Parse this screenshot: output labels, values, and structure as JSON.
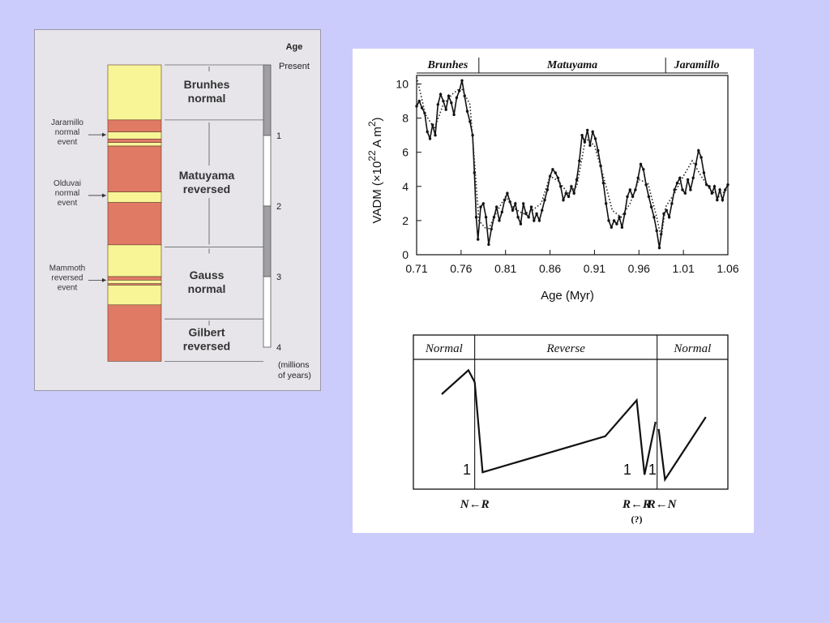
{
  "timescale": {
    "age_header": "Age",
    "present_label": "Present",
    "units_line1": "(millions",
    "units_line2": "of years)",
    "ticks": [
      "1",
      "2",
      "3",
      "4"
    ],
    "chrons": [
      {
        "line1": "Brunhes",
        "line2": "normal",
        "start_ma": 0.0,
        "end_ma": 0.78
      },
      {
        "line1": "Matuyama",
        "line2": "reversed",
        "start_ma": 0.78,
        "end_ma": 2.58
      },
      {
        "line1": "Gauss",
        "line2": "normal",
        "start_ma": 2.58,
        "end_ma": 3.6
      },
      {
        "line1": "Gilbert",
        "line2": "reversed",
        "start_ma": 3.6,
        "end_ma": 4.2
      }
    ],
    "events": [
      {
        "lines": [
          "Jaramillo",
          "normal",
          "event"
        ],
        "age_ma": 0.99
      },
      {
        "lines": [
          "Olduvai",
          "normal",
          "event"
        ],
        "age_ma": 1.85
      },
      {
        "lines": [
          "Mammoth",
          "reversed",
          "event"
        ],
        "age_ma": 3.05
      }
    ],
    "polarity_bands": [
      {
        "polarity": "normal",
        "from": 0.0,
        "to": 0.78
      },
      {
        "polarity": "reversed",
        "from": 0.78,
        "to": 0.95
      },
      {
        "polarity": "normal",
        "from": 0.95,
        "to": 1.05
      },
      {
        "polarity": "reversed",
        "from": 1.05,
        "to": 1.1
      },
      {
        "polarity": "normal",
        "from": 1.1,
        "to": 1.15
      },
      {
        "polarity": "reversed",
        "from": 1.15,
        "to": 1.8
      },
      {
        "polarity": "normal",
        "from": 1.8,
        "to": 1.95
      },
      {
        "polarity": "reversed",
        "from": 1.95,
        "to": 2.55
      },
      {
        "polarity": "normal",
        "from": 2.55,
        "to": 3.0
      },
      {
        "polarity": "reversed",
        "from": 3.0,
        "to": 3.05
      },
      {
        "polarity": "normal",
        "from": 3.05,
        "to": 3.1
      },
      {
        "polarity": "reversed",
        "from": 3.1,
        "to": 3.12
      },
      {
        "polarity": "normal",
        "from": 3.12,
        "to": 3.4
      },
      {
        "polarity": "reversed",
        "from": 3.4,
        "to": 4.2
      }
    ],
    "scale_bar": [
      {
        "shade": "grey",
        "from": 0.0,
        "to": 1.0
      },
      {
        "shade": "white",
        "from": 1.0,
        "to": 2.0
      },
      {
        "shade": "grey",
        "from": 2.0,
        "to": 3.0
      },
      {
        "shade": "white",
        "from": 3.0,
        "to": 4.0
      }
    ],
    "colors": {
      "normal": "#f8f596",
      "reversed": "#e07a65",
      "grey": "#a09fa3",
      "white": "#ffffff"
    }
  },
  "vadm_chart": {
    "chart_data": {
      "type": "line",
      "title": "",
      "xlabel": "Age (Myr)",
      "ylabel_main": "VADM (×10",
      "ylabel_exp": "22",
      "ylabel_unit": " A m",
      "ylabel_unit_exp": "2",
      "ylabel_close": ")",
      "xlim": [
        0.71,
        1.06
      ],
      "ylim": [
        0,
        10.5
      ],
      "x_ticks": [
        "0.71",
        "0.76",
        "0.81",
        "0.86",
        "0.91",
        "0.96",
        "1.01",
        "1.06"
      ],
      "y_ticks": [
        "0",
        "2",
        "4",
        "6",
        "8",
        "10"
      ],
      "x_tick_values": [
        0.71,
        0.76,
        0.81,
        0.86,
        0.91,
        0.96,
        1.01,
        1.06
      ],
      "y_tick_values": [
        0,
        2,
        4,
        6,
        8,
        10
      ],
      "top_labels": [
        {
          "text": "Brunhes",
          "from": 0.71,
          "to": 0.78
        },
        {
          "text": "Matuyama",
          "from": 0.78,
          "to": 0.99
        },
        {
          "text": "Jaramillo",
          "from": 0.99,
          "to": 1.06
        }
      ],
      "grid": false,
      "series": [
        {
          "style": "solid",
          "x": [
            0.71,
            0.713,
            0.716,
            0.719,
            0.722,
            0.725,
            0.728,
            0.731,
            0.734,
            0.737,
            0.74,
            0.743,
            0.746,
            0.749,
            0.752,
            0.755,
            0.758,
            0.761,
            0.764,
            0.767,
            0.77,
            0.773,
            0.775,
            0.777,
            0.779,
            0.782,
            0.785,
            0.788,
            0.791,
            0.794,
            0.797,
            0.8,
            0.803,
            0.806,
            0.809,
            0.812,
            0.815,
            0.818,
            0.821,
            0.824,
            0.827,
            0.83,
            0.833,
            0.836,
            0.839,
            0.842,
            0.845,
            0.848,
            0.851,
            0.854,
            0.857,
            0.86,
            0.863,
            0.866,
            0.869,
            0.872,
            0.875,
            0.878,
            0.881,
            0.884,
            0.887,
            0.89,
            0.893,
            0.896,
            0.899,
            0.902,
            0.905,
            0.908,
            0.911,
            0.914,
            0.917,
            0.92,
            0.923,
            0.926,
            0.929,
            0.932,
            0.935,
            0.938,
            0.941,
            0.944,
            0.947,
            0.95,
            0.953,
            0.956,
            0.959,
            0.962,
            0.965,
            0.968,
            0.971,
            0.974,
            0.977,
            0.98,
            0.983,
            0.985,
            0.988,
            0.991,
            0.994,
            0.997,
            1.0,
            1.003,
            1.006,
            1.009,
            1.012,
            1.015,
            1.018,
            1.021,
            1.024,
            1.027,
            1.03,
            1.033,
            1.036,
            1.039,
            1.042,
            1.045,
            1.048,
            1.051,
            1.054,
            1.057,
            1.06
          ],
          "y": [
            8.7,
            9.0,
            8.6,
            8.3,
            7.2,
            6.8,
            7.6,
            7.0,
            8.8,
            9.4,
            9.0,
            8.5,
            9.3,
            8.9,
            8.2,
            9.2,
            9.6,
            10.2,
            9.3,
            8.4,
            7.8,
            7.0,
            4.8,
            2.2,
            0.9,
            2.8,
            3.0,
            2.2,
            0.6,
            1.5,
            2.2,
            2.8,
            2.0,
            2.5,
            3.2,
            3.6,
            3.1,
            2.6,
            3.0,
            2.2,
            1.8,
            3.0,
            2.4,
            2.2,
            2.8,
            2.0,
            2.4,
            2.0,
            2.6,
            3.2,
            3.8,
            4.6,
            5.0,
            4.8,
            4.5,
            4.0,
            3.2,
            3.6,
            3.4,
            4.0,
            3.6,
            4.4,
            5.5,
            7.0,
            6.6,
            7.3,
            6.4,
            7.2,
            6.8,
            6.1,
            5.2,
            4.2,
            3.0,
            2.0,
            1.6,
            2.0,
            1.8,
            2.2,
            1.6,
            2.4,
            3.4,
            3.8,
            3.4,
            3.8,
            4.5,
            5.3,
            5.0,
            4.1,
            3.4,
            2.8,
            2.2,
            1.4,
            0.4,
            1.2,
            2.4,
            2.6,
            2.2,
            3.0,
            3.8,
            4.2,
            4.5,
            3.8,
            3.6,
            4.4,
            3.8,
            4.5,
            5.3,
            6.1,
            5.7,
            4.8,
            4.1,
            4.0,
            3.6,
            4.0,
            3.2,
            3.8,
            3.2,
            3.8,
            4.1
          ]
        },
        {
          "style": "dotted",
          "x": [
            0.71,
            0.72,
            0.73,
            0.74,
            0.75,
            0.76,
            0.77,
            0.775,
            0.78,
            0.79,
            0.8,
            0.81,
            0.82,
            0.83,
            0.84,
            0.85,
            0.86,
            0.87,
            0.88,
            0.89,
            0.9,
            0.91,
            0.92,
            0.93,
            0.94,
            0.95,
            0.96,
            0.97,
            0.98,
            0.985,
            0.99,
            1.0,
            1.01,
            1.02,
            1.03,
            1.04,
            1.05,
            1.06
          ],
          "y": [
            10.4,
            8.2,
            7.4,
            8.8,
            9.4,
            9.8,
            8.8,
            5.5,
            2.0,
            1.4,
            2.5,
            3.4,
            2.7,
            2.4,
            2.6,
            3.0,
            4.6,
            4.3,
            3.6,
            4.0,
            6.8,
            6.4,
            4.6,
            2.6,
            2.2,
            3.0,
            4.4,
            4.2,
            2.2,
            1.0,
            2.8,
            3.6,
            4.6,
            5.5,
            4.6,
            3.8,
            3.4,
            3.9
          ]
        }
      ]
    }
  },
  "schematic": {
    "chart_data": {
      "type": "line",
      "title": "",
      "xlim": [
        0,
        100
      ],
      "ylim": [
        0,
        100
      ],
      "headers": [
        {
          "text": "Normal",
          "from": 0,
          "to": 19.5
        },
        {
          "text": "Reverse",
          "from": 19.5,
          "to": 77.5
        },
        {
          "text": "Normal",
          "from": 77.5,
          "to": 100
        }
      ],
      "dividers": [
        19.5,
        77.5
      ],
      "series": [
        {
          "x": [
            9,
            17.5,
            19.5,
            22,
            61,
            71,
            73.5,
            77
          ],
          "y": [
            75,
            95,
            85,
            10,
            40,
            70,
            8,
            52
          ]
        },
        {
          "x": [
            78,
            80,
            93
          ],
          "y": [
            46,
            4,
            56
          ]
        }
      ],
      "markers": [
        {
          "text": "1",
          "x": 17
        },
        {
          "text": "1",
          "x": 68
        },
        {
          "text": "1",
          "x": 76
        }
      ],
      "transitions": [
        {
          "line1": "N←R",
          "line2": "",
          "x": 19.5
        },
        {
          "line1": "R←R",
          "line2": "(?)",
          "x": 71
        },
        {
          "line1": "R←N",
          "line2": "",
          "x": 79
        }
      ]
    }
  }
}
